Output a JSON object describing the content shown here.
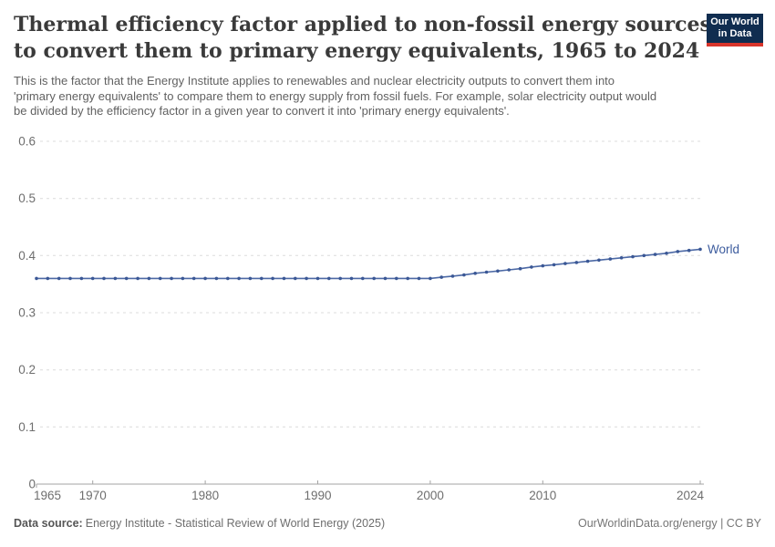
{
  "header": {
    "title_lines": [
      "Thermal efficiency factor applied to non-fossil energy sources",
      "to convert them to primary energy equivalents, 1965 to 2024"
    ],
    "subtitle_lines": [
      "This is the factor that the Energy Institute applies to renewables and nuclear electricity outputs to convert them into",
      "'primary energy equivalents' to compare them to energy supply from fossil fuels. For example, solar electricity output would",
      "be divided by the efficiency factor in a given year to convert it into 'primary energy equivalents'."
    ]
  },
  "logo": {
    "lines": [
      "Our World",
      "in Data"
    ],
    "background_color": "#102d50",
    "accent_color": "#d8352b"
  },
  "footer": {
    "data_source_label": "Data source:",
    "data_source_text": "Energy Institute - Statistical Review of World Energy (2025)",
    "attribution": "OurWorldinData.org/energy | CC BY"
  },
  "chart_data": {
    "type": "line",
    "title": "Thermal efficiency factor applied to non-fossil energy sources to convert them to primary energy equivalents, 1965 to 2024",
    "xlabel": "",
    "ylabel": "",
    "ylim": [
      0,
      0.6
    ],
    "yticks": [
      0,
      0.1,
      0.2,
      0.3,
      0.4,
      0.5,
      0.6
    ],
    "xticks": [
      1965,
      1970,
      1980,
      1990,
      2000,
      2010,
      2024
    ],
    "grid": "horizontal-dashed",
    "legend_position": "end-of-line-label",
    "x": [
      1965,
      1966,
      1967,
      1968,
      1969,
      1970,
      1971,
      1972,
      1973,
      1974,
      1975,
      1976,
      1977,
      1978,
      1979,
      1980,
      1981,
      1982,
      1983,
      1984,
      1985,
      1986,
      1987,
      1988,
      1989,
      1990,
      1991,
      1992,
      1993,
      1994,
      1995,
      1996,
      1997,
      1998,
      1999,
      2000,
      2001,
      2002,
      2003,
      2004,
      2005,
      2006,
      2007,
      2008,
      2009,
      2010,
      2011,
      2012,
      2013,
      2014,
      2015,
      2016,
      2017,
      2018,
      2019,
      2020,
      2021,
      2022,
      2023,
      2024
    ],
    "series": [
      {
        "name": "World",
        "color": "#4c69a5",
        "marker_color": "#3a5795",
        "values": [
          0.36,
          0.36,
          0.36,
          0.36,
          0.36,
          0.36,
          0.36,
          0.36,
          0.36,
          0.36,
          0.36,
          0.36,
          0.36,
          0.36,
          0.36,
          0.36,
          0.36,
          0.36,
          0.36,
          0.36,
          0.36,
          0.36,
          0.36,
          0.36,
          0.36,
          0.36,
          0.36,
          0.36,
          0.36,
          0.36,
          0.36,
          0.36,
          0.36,
          0.36,
          0.36,
          0.36,
          0.362,
          0.364,
          0.366,
          0.369,
          0.371,
          0.373,
          0.375,
          0.377,
          0.38,
          0.382,
          0.384,
          0.386,
          0.388,
          0.39,
          0.392,
          0.394,
          0.396,
          0.398,
          0.4,
          0.402,
          0.404,
          0.407,
          0.409,
          0.411
        ]
      }
    ]
  }
}
